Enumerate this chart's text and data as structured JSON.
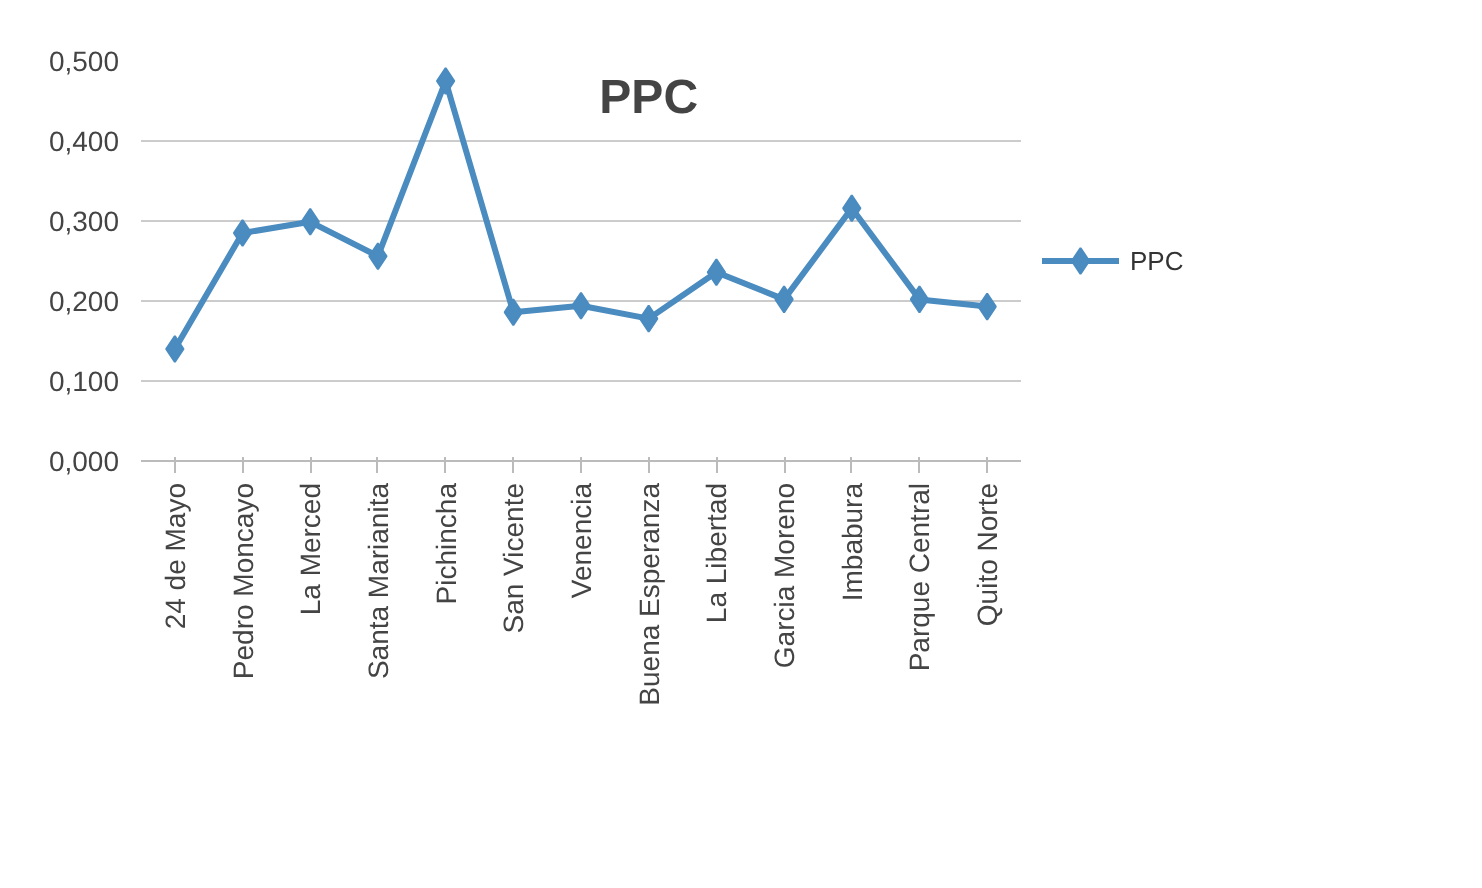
{
  "chart_data": {
    "type": "line",
    "title": "PPC",
    "categories": [
      "24 de Mayo",
      "Pedro Moncayo",
      "La Merced",
      "Santa Marianita",
      "Pichincha",
      "San Vicente",
      "Venencia",
      "Buena Esperanza",
      "La Libertad",
      "Garcia Moreno",
      "Imbabura",
      "Parque Central",
      "Quito Norte"
    ],
    "series": [
      {
        "name": "PPC",
        "color": "#4a8bc0",
        "values": [
          0.14,
          0.285,
          0.299,
          0.256,
          0.475,
          0.186,
          0.194,
          0.178,
          0.236,
          0.202,
          0.316,
          0.202,
          0.193
        ]
      }
    ],
    "ylim": [
      0,
      0.5
    ],
    "yticks": [
      {
        "value": 0,
        "label": "0,000"
      },
      {
        "value": 0.1,
        "label": "0,100"
      },
      {
        "value": 0.2,
        "label": "0,200"
      },
      {
        "value": 0.3,
        "label": "0,300"
      },
      {
        "value": 0.4,
        "label": "0,400"
      },
      {
        "value": 0.5,
        "label": "0,500"
      }
    ],
    "grid": "y",
    "legend": "right",
    "marker": "diamond",
    "line_style": "solid"
  }
}
